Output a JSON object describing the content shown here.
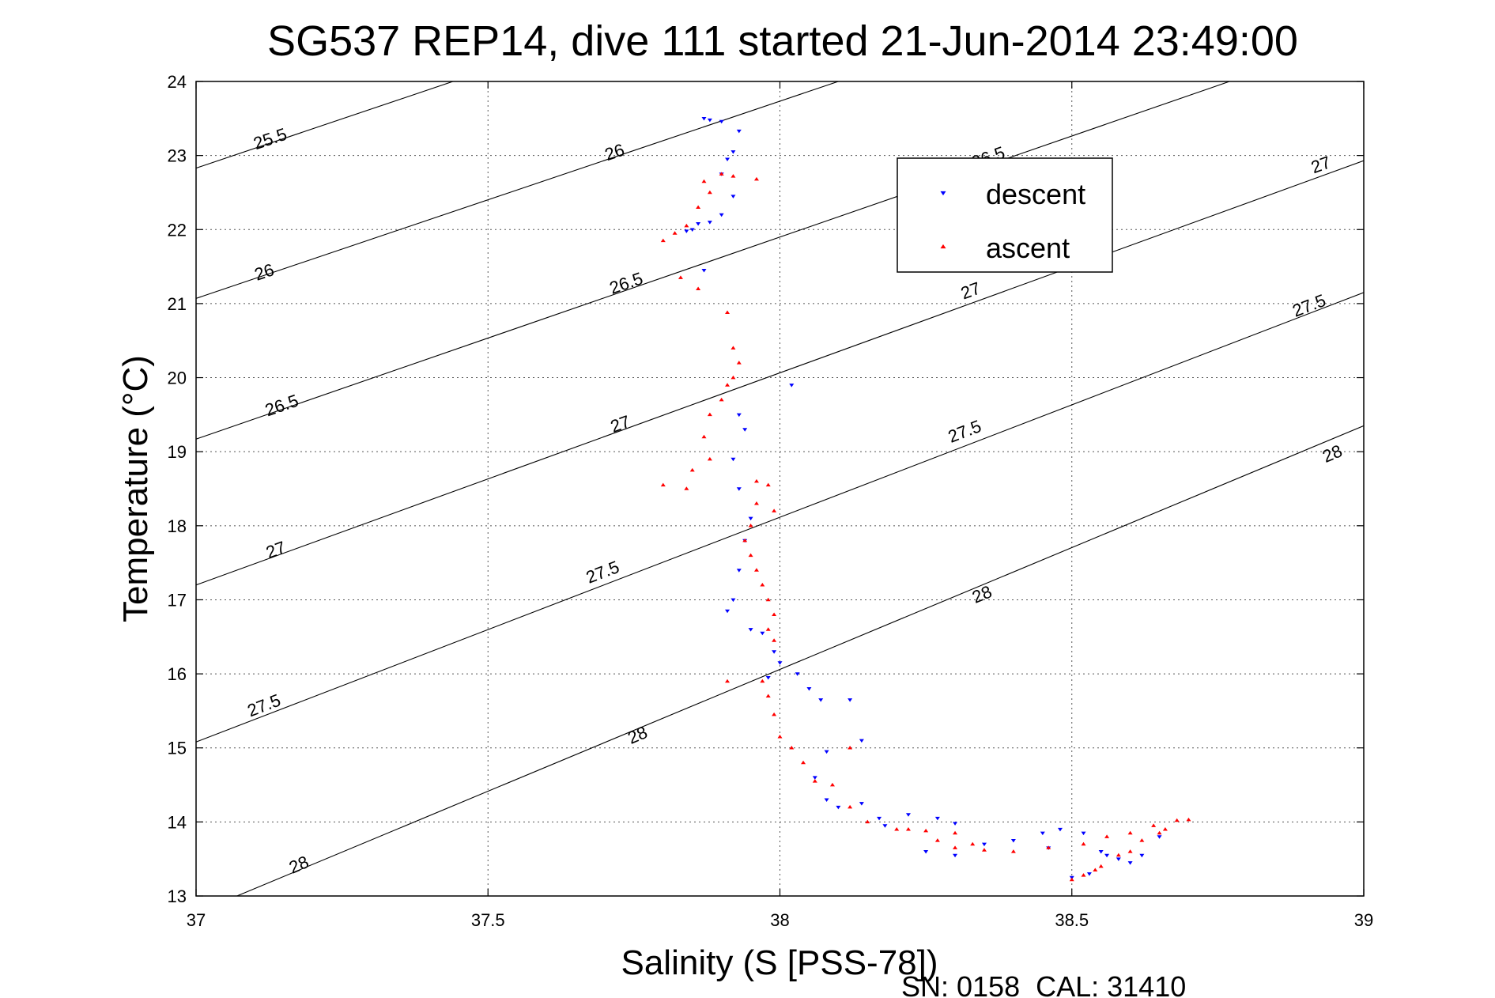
{
  "chart_data": {
    "type": "scatter",
    "title": "SG537 REP14, dive 111 started 21-Jun-2014 23:49:00",
    "xlabel": "Salinity (S [PSS-78])",
    "ylabel": "Temperature (°C)",
    "footer": "SN: 0158  CAL: 31410",
    "xlim": [
      37,
      39
    ],
    "ylim": [
      13,
      24
    ],
    "xticks": [
      37,
      37.5,
      38,
      38.5,
      39
    ],
    "xtick_labels": [
      "37",
      "37.5",
      "38",
      "38.5",
      "39"
    ],
    "yticks": [
      13,
      14,
      15,
      16,
      17,
      18,
      19,
      20,
      21,
      22,
      23,
      24
    ],
    "ytick_labels": [
      "13",
      "14",
      "15",
      "16",
      "17",
      "18",
      "19",
      "20",
      "21",
      "22",
      "23",
      "24"
    ],
    "grid": true,
    "legend_position": "top-right",
    "density_contours": [
      {
        "label": "25.5",
        "points": [
          [
            37,
            22.83
          ],
          [
            37.44,
            24
          ]
        ],
        "label_pos": [
          [
            37.13,
            23.15
          ]
        ]
      },
      {
        "label": "26",
        "points": [
          [
            37,
            21.07
          ],
          [
            38.1,
            24
          ]
        ],
        "label_pos": [
          [
            37.12,
            21.35
          ],
          [
            37.72,
            22.97
          ]
        ]
      },
      {
        "label": "26.5",
        "points": [
          [
            37,
            19.17
          ],
          [
            38.77,
            24
          ]
        ],
        "label_pos": [
          [
            37.15,
            19.55
          ],
          [
            37.74,
            21.2
          ],
          [
            38.36,
            22.9
          ]
        ]
      },
      {
        "label": "27",
        "points": [
          [
            37,
            17.2
          ],
          [
            39,
            22.93
          ]
        ],
        "label_pos": [
          [
            37.14,
            17.6
          ],
          [
            37.73,
            19.3
          ],
          [
            38.33,
            21.1
          ],
          [
            38.93,
            22.8
          ]
        ]
      },
      {
        "label": "27.5",
        "points": [
          [
            37,
            15.08
          ],
          [
            39,
            21.15
          ]
        ],
        "label_pos": [
          [
            37.12,
            15.5
          ],
          [
            37.7,
            17.3
          ],
          [
            38.32,
            19.2
          ],
          [
            38.91,
            20.9
          ]
        ]
      },
      {
        "label": "28",
        "points": [
          [
            37.07,
            13
          ],
          [
            39,
            19.35
          ]
        ],
        "label_pos": [
          [
            37.18,
            13.35
          ],
          [
            37.76,
            15.1
          ],
          [
            38.35,
            17.0
          ],
          [
            38.95,
            18.9
          ]
        ]
      }
    ],
    "series": [
      {
        "name": "descent",
        "color": "#0000ff",
        "marker": "triangle-down",
        "points": [
          [
            37.87,
            23.5
          ],
          [
            37.88,
            23.48
          ],
          [
            37.9,
            23.46
          ],
          [
            37.93,
            23.33
          ],
          [
            37.92,
            23.05
          ],
          [
            37.91,
            22.95
          ],
          [
            37.9,
            22.75
          ],
          [
            37.92,
            22.45
          ],
          [
            37.9,
            22.2
          ],
          [
            37.88,
            22.1
          ],
          [
            37.86,
            22.08
          ],
          [
            37.85,
            22.0
          ],
          [
            37.84,
            21.98
          ],
          [
            37.87,
            21.45
          ],
          [
            37.93,
            19.5
          ],
          [
            37.94,
            19.3
          ],
          [
            37.92,
            18.9
          ],
          [
            37.93,
            18.5
          ],
          [
            37.95,
            18.1
          ],
          [
            37.94,
            17.8
          ],
          [
            37.93,
            17.4
          ],
          [
            37.92,
            17.0
          ],
          [
            37.91,
            16.85
          ],
          [
            37.95,
            16.6
          ],
          [
            37.97,
            16.55
          ],
          [
            37.99,
            16.3
          ],
          [
            38.0,
            16.15
          ],
          [
            38.03,
            16.0
          ],
          [
            38.05,
            15.8
          ],
          [
            38.07,
            15.65
          ],
          [
            38.12,
            15.65
          ],
          [
            38.14,
            15.1
          ],
          [
            38.06,
            14.6
          ],
          [
            38.08,
            14.3
          ],
          [
            38.1,
            14.2
          ],
          [
            38.14,
            14.25
          ],
          [
            38.17,
            14.05
          ],
          [
            38.22,
            14.1
          ],
          [
            38.27,
            14.05
          ],
          [
            38.3,
            13.98
          ],
          [
            38.25,
            13.6
          ],
          [
            38.3,
            13.55
          ],
          [
            38.35,
            13.7
          ],
          [
            38.4,
            13.75
          ],
          [
            38.45,
            13.85
          ],
          [
            38.48,
            13.9
          ],
          [
            38.52,
            13.85
          ],
          [
            38.55,
            13.6
          ],
          [
            38.58,
            13.5
          ],
          [
            38.6,
            13.45
          ],
          [
            38.62,
            13.55
          ],
          [
            38.5,
            13.25
          ],
          [
            38.53,
            13.3
          ],
          [
            38.56,
            13.55
          ],
          [
            38.65,
            13.8
          ],
          [
            37.98,
            15.95
          ],
          [
            38.02,
            19.9
          ],
          [
            38.08,
            14.95
          ],
          [
            38.18,
            13.95
          ],
          [
            38.46,
            13.65
          ]
        ]
      },
      {
        "name": "ascent",
        "color": "#ff0000",
        "marker": "triangle-up",
        "points": [
          [
            37.9,
            22.75
          ],
          [
            37.92,
            22.72
          ],
          [
            37.96,
            22.68
          ],
          [
            37.87,
            22.65
          ],
          [
            37.88,
            22.5
          ],
          [
            37.86,
            22.3
          ],
          [
            37.84,
            22.05
          ],
          [
            37.82,
            21.95
          ],
          [
            37.8,
            21.85
          ],
          [
            37.83,
            21.35
          ],
          [
            37.86,
            21.2
          ],
          [
            37.91,
            20.88
          ],
          [
            37.92,
            20.4
          ],
          [
            37.93,
            20.2
          ],
          [
            37.92,
            20.0
          ],
          [
            37.91,
            19.9
          ],
          [
            37.9,
            19.7
          ],
          [
            37.88,
            19.5
          ],
          [
            37.87,
            19.2
          ],
          [
            37.88,
            18.9
          ],
          [
            37.85,
            18.75
          ],
          [
            37.84,
            18.5
          ],
          [
            37.8,
            18.55
          ],
          [
            37.96,
            18.6
          ],
          [
            37.98,
            18.55
          ],
          [
            37.99,
            18.2
          ],
          [
            37.96,
            18.3
          ],
          [
            37.95,
            18.0
          ],
          [
            37.94,
            17.8
          ],
          [
            37.95,
            17.6
          ],
          [
            37.96,
            17.4
          ],
          [
            37.97,
            17.2
          ],
          [
            37.98,
            17.0
          ],
          [
            37.99,
            16.8
          ],
          [
            37.98,
            16.6
          ],
          [
            37.99,
            16.45
          ],
          [
            37.91,
            15.9
          ],
          [
            37.97,
            15.9
          ],
          [
            37.98,
            15.7
          ],
          [
            37.99,
            15.45
          ],
          [
            38.0,
            15.15
          ],
          [
            38.02,
            15.0
          ],
          [
            38.04,
            14.8
          ],
          [
            38.06,
            14.55
          ],
          [
            38.09,
            14.5
          ],
          [
            38.12,
            14.2
          ],
          [
            38.15,
            14.0
          ],
          [
            38.2,
            13.9
          ],
          [
            38.25,
            13.88
          ],
          [
            38.3,
            13.85
          ],
          [
            38.27,
            13.75
          ],
          [
            38.3,
            13.65
          ],
          [
            38.35,
            13.62
          ],
          [
            38.4,
            13.6
          ],
          [
            38.46,
            13.65
          ],
          [
            38.52,
            13.7
          ],
          [
            38.56,
            13.8
          ],
          [
            38.6,
            13.85
          ],
          [
            38.64,
            13.95
          ],
          [
            38.68,
            14.02
          ],
          [
            38.7,
            14.03
          ],
          [
            38.66,
            13.9
          ],
          [
            38.62,
            13.75
          ],
          [
            38.58,
            13.55
          ],
          [
            38.55,
            13.4
          ],
          [
            38.52,
            13.28
          ],
          [
            38.5,
            13.22
          ],
          [
            38.54,
            13.35
          ],
          [
            38.6,
            13.6
          ],
          [
            38.65,
            13.85
          ],
          [
            38.12,
            15.0
          ],
          [
            38.22,
            13.9
          ],
          [
            38.33,
            13.7
          ]
        ]
      }
    ]
  }
}
